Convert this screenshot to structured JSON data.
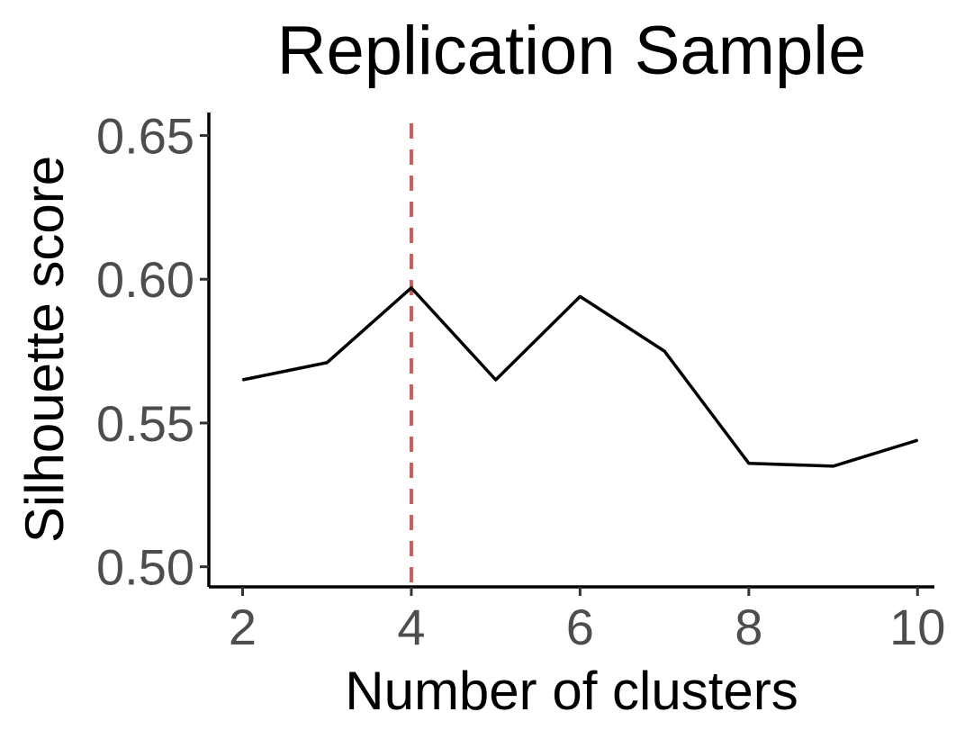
{
  "chart_data": {
    "type": "line",
    "title": "Replication Sample",
    "xlabel": "Number of clusters",
    "ylabel": "Silhouette score",
    "x": [
      2,
      3,
      4,
      5,
      6,
      7,
      8,
      9,
      10
    ],
    "series": [
      {
        "values": [
          0.565,
          0.571,
          0.597,
          0.565,
          0.594,
          0.575,
          0.536,
          0.535,
          0.544
        ],
        "color": "#000000"
      }
    ],
    "xlim": [
      1.6,
      10.2
    ],
    "ylim": [
      0.493,
      0.658
    ],
    "x_ticks": [
      2,
      4,
      6,
      8,
      10
    ],
    "x_tick_labels": [
      "2",
      "4",
      "6",
      "8",
      "10"
    ],
    "y_ticks": [
      0.5,
      0.55,
      0.6,
      0.65
    ],
    "y_tick_labels": [
      "0.50",
      "0.55",
      "0.60",
      "0.65"
    ],
    "reference_line": {
      "orientation": "vertical",
      "x": 4,
      "style": "dashed",
      "color": "#cd5c5c"
    },
    "grid": false,
    "legend": "none"
  }
}
